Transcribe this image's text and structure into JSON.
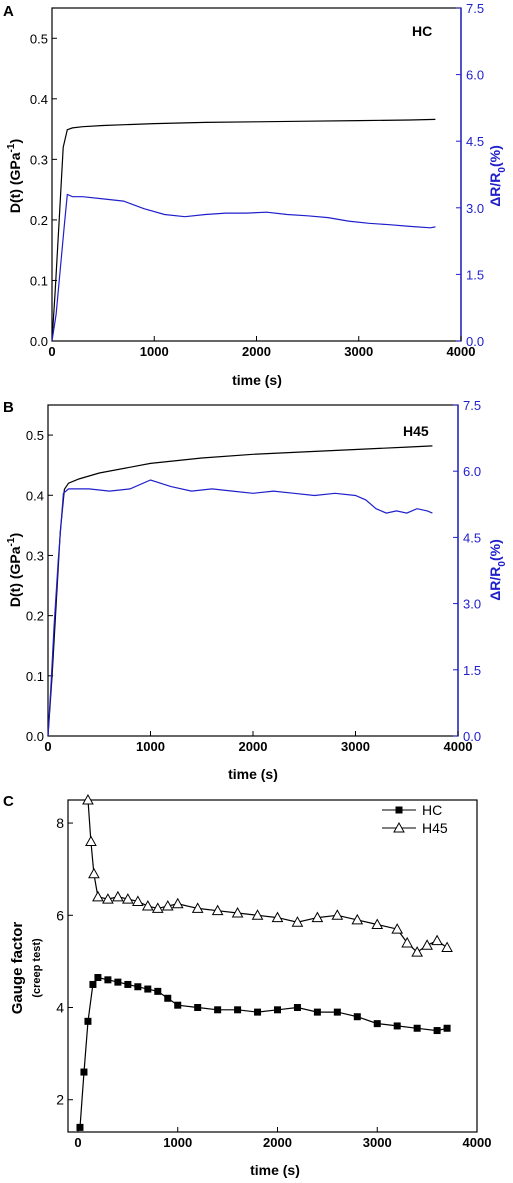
{
  "chart_data": [
    {
      "panel_letter": "A",
      "type": "line",
      "annotation": "HC",
      "xlabel": "time (s)",
      "ylabel": "D(t) (GPa",
      "ylabel_sup": "-1",
      "ylabel_close": ")",
      "ylabel_right": "ΔR/R",
      "ylabel_right_sub": "0",
      "ylabel_right_tail": "(%)",
      "xlim": [
        0,
        4000
      ],
      "ylim": [
        0,
        0.55
      ],
      "ylim_right": [
        0,
        7.5
      ],
      "xticks": [
        0,
        1000,
        2000,
        3000,
        4000
      ],
      "yticks": [
        0.0,
        0.1,
        0.2,
        0.3,
        0.4,
        0.5
      ],
      "yticks_right": [
        0.0,
        1.5,
        3.0,
        4.5,
        6.0,
        7.5
      ],
      "series": [
        {
          "axis": "left",
          "color": "#000000",
          "x": [
            0,
            30,
            70,
            110,
            150,
            200,
            300,
            500,
            1000,
            1500,
            2000,
            2500,
            3000,
            3500,
            3750
          ],
          "y": [
            0,
            0.08,
            0.2,
            0.32,
            0.349,
            0.352,
            0.354,
            0.356,
            0.359,
            0.361,
            0.362,
            0.363,
            0.364,
            0.365,
            0.366
          ]
        },
        {
          "axis": "right",
          "color": "#1f1fcc",
          "x": [
            0,
            40,
            80,
            120,
            150,
            200,
            300,
            500,
            700,
            900,
            1100,
            1300,
            1500,
            1700,
            1900,
            2100,
            2300,
            2500,
            2700,
            2900,
            3100,
            3300,
            3500,
            3700,
            3750
          ],
          "y": [
            0,
            0.6,
            1.6,
            2.6,
            3.3,
            3.25,
            3.25,
            3.2,
            3.15,
            2.98,
            2.85,
            2.8,
            2.85,
            2.88,
            2.88,
            2.9,
            2.85,
            2.82,
            2.78,
            2.7,
            2.65,
            2.62,
            2.58,
            2.55,
            2.57
          ]
        }
      ]
    },
    {
      "panel_letter": "B",
      "type": "line",
      "annotation": "H45",
      "xlabel": "time (s)",
      "ylabel": "D(t) (GPa",
      "ylabel_sup": "-1",
      "ylabel_close": ")",
      "ylabel_right": "ΔR/R",
      "ylabel_right_sub": "0",
      "ylabel_right_tail": "(%)",
      "xlim": [
        0,
        4000
      ],
      "ylim": [
        0,
        0.55
      ],
      "ylim_right": [
        0,
        7.5
      ],
      "xticks": [
        0,
        1000,
        2000,
        3000,
        4000
      ],
      "yticks": [
        0.0,
        0.1,
        0.2,
        0.3,
        0.4,
        0.5
      ],
      "yticks_right": [
        0.0,
        1.5,
        3.0,
        4.5,
        6.0,
        7.5
      ],
      "series": [
        {
          "axis": "left",
          "color": "#000000",
          "x": [
            0,
            40,
            80,
            120,
            160,
            200,
            300,
            500,
            1000,
            1500,
            2000,
            2500,
            3000,
            3500,
            3750
          ],
          "y": [
            0,
            0.1,
            0.22,
            0.34,
            0.41,
            0.42,
            0.427,
            0.437,
            0.453,
            0.462,
            0.468,
            0.472,
            0.476,
            0.48,
            0.482
          ]
        },
        {
          "axis": "right",
          "color": "#1f1fcc",
          "x": [
            0,
            30,
            60,
            100,
            150,
            200,
            400,
            600,
            800,
            1000,
            1200,
            1400,
            1600,
            1800,
            2000,
            2200,
            2400,
            2600,
            2800,
            3000,
            3100,
            3200,
            3300,
            3400,
            3500,
            3600,
            3700,
            3750
          ],
          "y": [
            0,
            1.2,
            2.5,
            4.0,
            5.5,
            5.6,
            5.6,
            5.55,
            5.6,
            5.8,
            5.65,
            5.55,
            5.6,
            5.55,
            5.5,
            5.55,
            5.5,
            5.45,
            5.5,
            5.45,
            5.35,
            5.15,
            5.05,
            5.1,
            5.05,
            5.15,
            5.1,
            5.05
          ]
        }
      ]
    },
    {
      "panel_letter": "C",
      "type": "line",
      "xlabel": "time (s)",
      "ylabel": "Gauge factor",
      "ylabel_sub": "(creep test)",
      "xlim": [
        -100,
        4000
      ],
      "ylim": [
        1.3,
        8.5
      ],
      "xticks": [
        0,
        1000,
        2000,
        3000,
        4000
      ],
      "yticks": [
        2,
        4,
        6,
        8
      ],
      "legend": [
        {
          "name": "HC",
          "marker": "square"
        },
        {
          "name": "H45",
          "marker": "triangle"
        }
      ],
      "series": [
        {
          "name": "HC",
          "marker": "square",
          "color": "#000000",
          "x": [
            20,
            60,
            100,
            150,
            200,
            300,
            400,
            500,
            600,
            700,
            800,
            900,
            1000,
            1200,
            1400,
            1600,
            1800,
            2000,
            2200,
            2400,
            2600,
            2800,
            3000,
            3200,
            3400,
            3600,
            3700
          ],
          "y": [
            1.4,
            2.6,
            3.7,
            4.5,
            4.65,
            4.6,
            4.55,
            4.5,
            4.45,
            4.4,
            4.35,
            4.2,
            4.05,
            4.0,
            3.95,
            3.95,
            3.9,
            3.95,
            4.0,
            3.9,
            3.9,
            3.8,
            3.65,
            3.6,
            3.55,
            3.5,
            3.55
          ]
        },
        {
          "name": "H45",
          "marker": "triangle",
          "color": "#000000",
          "x": [
            100,
            130,
            160,
            200,
            300,
            400,
            500,
            600,
            700,
            800,
            900,
            1000,
            1200,
            1400,
            1600,
            1800,
            2000,
            2200,
            2400,
            2600,
            2800,
            3000,
            3200,
            3300,
            3400,
            3500,
            3600,
            3700
          ],
          "y": [
            8.5,
            7.6,
            6.9,
            6.4,
            6.35,
            6.4,
            6.35,
            6.3,
            6.2,
            6.15,
            6.2,
            6.25,
            6.15,
            6.1,
            6.05,
            6.0,
            5.95,
            5.85,
            5.95,
            6.0,
            5.9,
            5.8,
            5.7,
            5.4,
            5.2,
            5.35,
            5.45,
            5.3
          ]
        }
      ]
    }
  ]
}
